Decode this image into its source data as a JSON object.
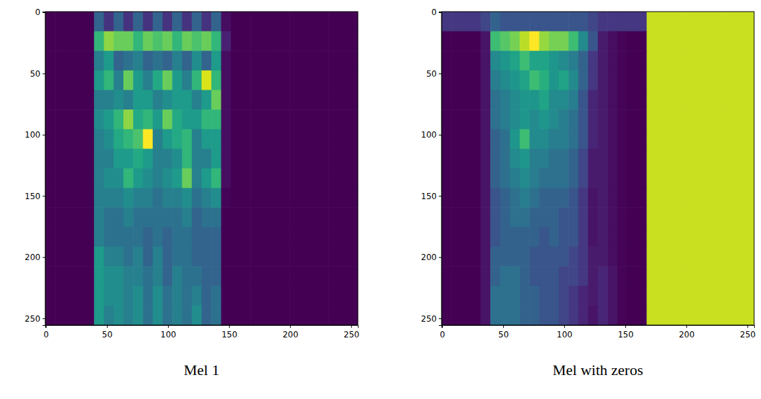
{
  "chart_data": [
    {
      "type": "heatmap",
      "title": "Mel 1",
      "color": "viridis",
      "xlim": [
        -0.5,
        255.5
      ],
      "ylim": [
        255.5,
        -0.5
      ],
      "xticks": [
        0,
        50,
        100,
        150,
        200,
        250
      ],
      "yticks": [
        0,
        50,
        100,
        150,
        200,
        250
      ],
      "cells": [
        [
          0.02,
          0.02,
          0.02,
          0.02,
          0.02,
          0.3,
          0.15,
          0.3,
          0.15,
          0.3,
          0.15,
          0.3,
          0.15,
          0.3,
          0.15,
          0.3,
          0.15,
          0.3,
          0.05,
          0.02,
          0.02,
          0.02,
          0.02,
          0.02,
          0.02,
          0.02,
          0.02,
          0.02,
          0.02,
          0.02,
          0.02,
          0.02
        ],
        [
          0.02,
          0.02,
          0.02,
          0.02,
          0.02,
          0.6,
          0.75,
          0.7,
          0.7,
          0.6,
          0.7,
          0.65,
          0.7,
          0.6,
          0.7,
          0.65,
          0.7,
          0.6,
          0.1,
          0.02,
          0.02,
          0.02,
          0.02,
          0.02,
          0.02,
          0.02,
          0.02,
          0.02,
          0.02,
          0.02,
          0.02,
          0.02
        ],
        [
          0.02,
          0.02,
          0.02,
          0.02,
          0.02,
          0.4,
          0.5,
          0.3,
          0.35,
          0.4,
          0.3,
          0.35,
          0.3,
          0.4,
          0.3,
          0.45,
          0.3,
          0.5,
          0.05,
          0.02,
          0.02,
          0.02,
          0.02,
          0.02,
          0.02,
          0.02,
          0.02,
          0.02,
          0.02,
          0.02,
          0.02,
          0.02
        ],
        [
          0.02,
          0.02,
          0.02,
          0.02,
          0.02,
          0.5,
          0.6,
          0.4,
          0.7,
          0.5,
          0.4,
          0.55,
          0.7,
          0.5,
          0.4,
          0.6,
          0.85,
          0.6,
          0.05,
          0.02,
          0.02,
          0.02,
          0.02,
          0.02,
          0.02,
          0.02,
          0.02,
          0.02,
          0.02,
          0.02,
          0.02,
          0.02
        ],
        [
          0.02,
          0.02,
          0.02,
          0.02,
          0.02,
          0.4,
          0.4,
          0.45,
          0.4,
          0.5,
          0.5,
          0.4,
          0.45,
          0.5,
          0.5,
          0.4,
          0.5,
          0.7,
          0.05,
          0.02,
          0.02,
          0.02,
          0.02,
          0.02,
          0.02,
          0.02,
          0.02,
          0.02,
          0.02,
          0.02,
          0.02,
          0.02
        ],
        [
          0.02,
          0.02,
          0.02,
          0.02,
          0.02,
          0.45,
          0.5,
          0.6,
          0.75,
          0.55,
          0.6,
          0.5,
          0.7,
          0.55,
          0.5,
          0.5,
          0.6,
          0.6,
          0.05,
          0.02,
          0.02,
          0.02,
          0.02,
          0.02,
          0.02,
          0.02,
          0.02,
          0.02,
          0.02,
          0.02,
          0.02,
          0.02
        ],
        [
          0.02,
          0.02,
          0.02,
          0.02,
          0.02,
          0.4,
          0.45,
          0.55,
          0.6,
          0.65,
          0.9,
          0.4,
          0.5,
          0.55,
          0.6,
          0.4,
          0.5,
          0.5,
          0.05,
          0.02,
          0.02,
          0.02,
          0.02,
          0.02,
          0.02,
          0.02,
          0.02,
          0.02,
          0.02,
          0.02,
          0.02,
          0.02
        ],
        [
          0.02,
          0.02,
          0.02,
          0.02,
          0.02,
          0.4,
          0.4,
          0.5,
          0.5,
          0.55,
          0.5,
          0.4,
          0.4,
          0.45,
          0.6,
          0.4,
          0.4,
          0.5,
          0.05,
          0.02,
          0.02,
          0.02,
          0.02,
          0.02,
          0.02,
          0.02,
          0.02,
          0.02,
          0.02,
          0.02,
          0.02,
          0.02
        ],
        [
          0.02,
          0.02,
          0.02,
          0.02,
          0.02,
          0.4,
          0.45,
          0.45,
          0.6,
          0.5,
          0.45,
          0.4,
          0.45,
          0.5,
          0.7,
          0.4,
          0.5,
          0.6,
          0.05,
          0.02,
          0.02,
          0.02,
          0.02,
          0.02,
          0.02,
          0.02,
          0.02,
          0.02,
          0.02,
          0.02,
          0.02,
          0.02
        ],
        [
          0.02,
          0.02,
          0.02,
          0.02,
          0.02,
          0.4,
          0.4,
          0.4,
          0.45,
          0.4,
          0.4,
          0.35,
          0.4,
          0.4,
          0.45,
          0.35,
          0.4,
          0.45,
          0.03,
          0.02,
          0.02,
          0.02,
          0.02,
          0.02,
          0.02,
          0.02,
          0.02,
          0.02,
          0.02,
          0.02,
          0.02,
          0.02
        ],
        [
          0.02,
          0.02,
          0.02,
          0.02,
          0.02,
          0.4,
          0.35,
          0.35,
          0.4,
          0.35,
          0.35,
          0.35,
          0.35,
          0.35,
          0.4,
          0.3,
          0.35,
          0.35,
          0.02,
          0.02,
          0.02,
          0.02,
          0.02,
          0.02,
          0.02,
          0.02,
          0.02,
          0.02,
          0.02,
          0.02,
          0.02,
          0.02
        ],
        [
          0.02,
          0.02,
          0.02,
          0.02,
          0.02,
          0.4,
          0.35,
          0.35,
          0.35,
          0.35,
          0.3,
          0.35,
          0.3,
          0.35,
          0.35,
          0.3,
          0.3,
          0.3,
          0.02,
          0.02,
          0.02,
          0.02,
          0.02,
          0.02,
          0.02,
          0.02,
          0.02,
          0.02,
          0.02,
          0.02,
          0.02,
          0.02
        ],
        [
          0.02,
          0.02,
          0.02,
          0.02,
          0.02,
          0.5,
          0.4,
          0.4,
          0.35,
          0.4,
          0.3,
          0.4,
          0.3,
          0.35,
          0.35,
          0.3,
          0.3,
          0.3,
          0.02,
          0.02,
          0.02,
          0.02,
          0.02,
          0.02,
          0.02,
          0.02,
          0.02,
          0.02,
          0.02,
          0.02,
          0.02,
          0.02
        ],
        [
          0.02,
          0.02,
          0.02,
          0.02,
          0.02,
          0.5,
          0.45,
          0.45,
          0.4,
          0.4,
          0.35,
          0.4,
          0.3,
          0.4,
          0.35,
          0.35,
          0.3,
          0.3,
          0.02,
          0.02,
          0.02,
          0.02,
          0.02,
          0.02,
          0.02,
          0.02,
          0.02,
          0.02,
          0.02,
          0.02,
          0.02,
          0.02
        ],
        [
          0.02,
          0.02,
          0.02,
          0.02,
          0.02,
          0.5,
          0.45,
          0.45,
          0.4,
          0.45,
          0.35,
          0.45,
          0.35,
          0.4,
          0.35,
          0.4,
          0.3,
          0.35,
          0.02,
          0.02,
          0.02,
          0.02,
          0.02,
          0.02,
          0.02,
          0.02,
          0.02,
          0.02,
          0.02,
          0.02,
          0.02,
          0.02
        ],
        [
          0.02,
          0.02,
          0.02,
          0.02,
          0.02,
          0.5,
          0.4,
          0.45,
          0.4,
          0.45,
          0.35,
          0.45,
          0.35,
          0.4,
          0.35,
          0.45,
          0.3,
          0.35,
          0.02,
          0.02,
          0.02,
          0.02,
          0.02,
          0.02,
          0.02,
          0.02,
          0.02,
          0.02,
          0.02,
          0.02,
          0.02,
          0.02
        ]
      ]
    },
    {
      "type": "heatmap",
      "title": "Mel with zeros",
      "color": "viridis",
      "xlim": [
        -0.5,
        255.5
      ],
      "ylim": [
        255.5,
        -0.5
      ],
      "xticks": [
        0,
        50,
        100,
        150,
        200,
        250
      ],
      "yticks": [
        0,
        50,
        100,
        150,
        200,
        250
      ],
      "cells": [
        [
          0.2,
          0.2,
          0.2,
          0.2,
          0.25,
          0.35,
          0.3,
          0.3,
          0.3,
          0.3,
          0.3,
          0.3,
          0.3,
          0.3,
          0.3,
          0.25,
          0.2,
          0.2,
          0.2,
          0.2,
          0.2,
          0.92,
          0.92,
          0.92,
          0.92,
          0.92,
          0.92,
          0.92,
          0.92,
          0.92,
          0.92,
          0.92
        ],
        [
          0.05,
          0.05,
          0.05,
          0.05,
          0.1,
          0.7,
          0.75,
          0.8,
          0.9,
          1.0,
          0.85,
          0.8,
          0.8,
          0.7,
          0.5,
          0.3,
          0.12,
          0.08,
          0.06,
          0.05,
          0.05,
          0.92,
          0.92,
          0.92,
          0.92,
          0.92,
          0.92,
          0.92,
          0.92,
          0.92,
          0.92,
          0.92
        ],
        [
          0.05,
          0.05,
          0.05,
          0.05,
          0.1,
          0.5,
          0.55,
          0.6,
          0.7,
          0.6,
          0.6,
          0.55,
          0.5,
          0.45,
          0.35,
          0.2,
          0.12,
          0.08,
          0.06,
          0.05,
          0.05,
          0.92,
          0.92,
          0.92,
          0.92,
          0.92,
          0.92,
          0.92,
          0.92,
          0.92,
          0.92,
          0.92
        ],
        [
          0.05,
          0.05,
          0.05,
          0.05,
          0.1,
          0.45,
          0.5,
          0.55,
          0.6,
          0.7,
          0.65,
          0.55,
          0.6,
          0.5,
          0.35,
          0.2,
          0.12,
          0.08,
          0.06,
          0.05,
          0.05,
          0.92,
          0.92,
          0.92,
          0.92,
          0.92,
          0.92,
          0.92,
          0.92,
          0.92,
          0.92,
          0.92
        ],
        [
          0.05,
          0.05,
          0.05,
          0.05,
          0.1,
          0.4,
          0.45,
          0.5,
          0.55,
          0.55,
          0.6,
          0.5,
          0.5,
          0.45,
          0.3,
          0.15,
          0.12,
          0.08,
          0.06,
          0.05,
          0.05,
          0.92,
          0.92,
          0.92,
          0.92,
          0.92,
          0.92,
          0.92,
          0.92,
          0.92,
          0.92,
          0.92
        ],
        [
          0.05,
          0.05,
          0.05,
          0.05,
          0.1,
          0.4,
          0.45,
          0.5,
          0.55,
          0.5,
          0.55,
          0.5,
          0.45,
          0.4,
          0.3,
          0.15,
          0.12,
          0.08,
          0.06,
          0.05,
          0.05,
          0.92,
          0.92,
          0.92,
          0.92,
          0.92,
          0.92,
          0.92,
          0.92,
          0.92,
          0.92,
          0.92
        ],
        [
          0.05,
          0.05,
          0.05,
          0.05,
          0.1,
          0.35,
          0.4,
          0.55,
          0.7,
          0.5,
          0.5,
          0.45,
          0.45,
          0.4,
          0.3,
          0.15,
          0.12,
          0.08,
          0.06,
          0.05,
          0.05,
          0.92,
          0.92,
          0.92,
          0.92,
          0.92,
          0.92,
          0.92,
          0.92,
          0.92,
          0.92,
          0.92
        ],
        [
          0.05,
          0.05,
          0.05,
          0.05,
          0.1,
          0.35,
          0.4,
          0.5,
          0.55,
          0.45,
          0.45,
          0.4,
          0.4,
          0.35,
          0.25,
          0.12,
          0.12,
          0.08,
          0.06,
          0.05,
          0.05,
          0.92,
          0.92,
          0.92,
          0.92,
          0.92,
          0.92,
          0.92,
          0.92,
          0.92,
          0.92,
          0.92
        ],
        [
          0.05,
          0.05,
          0.05,
          0.05,
          0.1,
          0.35,
          0.4,
          0.45,
          0.5,
          0.45,
          0.4,
          0.4,
          0.4,
          0.35,
          0.25,
          0.12,
          0.12,
          0.08,
          0.06,
          0.05,
          0.05,
          0.92,
          0.92,
          0.92,
          0.92,
          0.92,
          0.92,
          0.92,
          0.92,
          0.92,
          0.92,
          0.92
        ],
        [
          0.05,
          0.05,
          0.05,
          0.05,
          0.1,
          0.3,
          0.35,
          0.4,
          0.45,
          0.4,
          0.35,
          0.35,
          0.35,
          0.3,
          0.2,
          0.1,
          0.12,
          0.08,
          0.06,
          0.05,
          0.05,
          0.92,
          0.92,
          0.92,
          0.92,
          0.92,
          0.92,
          0.92,
          0.92,
          0.92,
          0.92,
          0.92
        ],
        [
          0.05,
          0.05,
          0.05,
          0.05,
          0.1,
          0.3,
          0.35,
          0.4,
          0.4,
          0.35,
          0.35,
          0.35,
          0.3,
          0.3,
          0.2,
          0.1,
          0.12,
          0.08,
          0.06,
          0.05,
          0.05,
          0.92,
          0.92,
          0.92,
          0.92,
          0.92,
          0.92,
          0.92,
          0.92,
          0.92,
          0.92,
          0.92
        ],
        [
          0.05,
          0.05,
          0.05,
          0.05,
          0.1,
          0.3,
          0.35,
          0.35,
          0.35,
          0.35,
          0.3,
          0.35,
          0.3,
          0.3,
          0.2,
          0.1,
          0.12,
          0.08,
          0.06,
          0.05,
          0.05,
          0.92,
          0.92,
          0.92,
          0.92,
          0.92,
          0.92,
          0.92,
          0.92,
          0.92,
          0.92,
          0.92
        ],
        [
          0.05,
          0.05,
          0.05,
          0.05,
          0.1,
          0.35,
          0.35,
          0.35,
          0.35,
          0.3,
          0.3,
          0.3,
          0.3,
          0.25,
          0.2,
          0.12,
          0.12,
          0.08,
          0.06,
          0.05,
          0.05,
          0.92,
          0.92,
          0.92,
          0.92,
          0.92,
          0.92,
          0.92,
          0.92,
          0.92,
          0.92,
          0.92
        ],
        [
          0.05,
          0.05,
          0.05,
          0.05,
          0.1,
          0.35,
          0.4,
          0.4,
          0.35,
          0.3,
          0.3,
          0.3,
          0.25,
          0.25,
          0.2,
          0.12,
          0.15,
          0.1,
          0.06,
          0.05,
          0.05,
          0.92,
          0.92,
          0.92,
          0.92,
          0.92,
          0.92,
          0.92,
          0.92,
          0.92,
          0.92,
          0.92
        ],
        [
          0.05,
          0.05,
          0.05,
          0.05,
          0.1,
          0.4,
          0.4,
          0.4,
          0.35,
          0.35,
          0.3,
          0.3,
          0.25,
          0.2,
          0.15,
          0.12,
          0.15,
          0.1,
          0.06,
          0.05,
          0.05,
          0.92,
          0.92,
          0.92,
          0.92,
          0.92,
          0.92,
          0.92,
          0.92,
          0.92,
          0.92,
          0.92
        ],
        [
          0.05,
          0.05,
          0.05,
          0.05,
          0.1,
          0.4,
          0.4,
          0.4,
          0.35,
          0.35,
          0.3,
          0.3,
          0.25,
          0.2,
          0.15,
          0.1,
          0.15,
          0.1,
          0.06,
          0.05,
          0.05,
          0.92,
          0.92,
          0.92,
          0.92,
          0.92,
          0.92,
          0.92,
          0.92,
          0.92,
          0.92,
          0.92
        ]
      ]
    }
  ]
}
